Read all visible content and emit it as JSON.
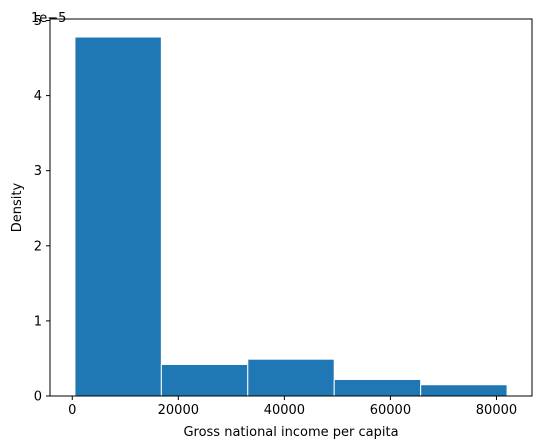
{
  "chart_data": {
    "type": "bar",
    "title": "",
    "xlabel": "Gross national income per capita",
    "ylabel": "Density",
    "y_offset_label": "1e−5",
    "bins": [
      {
        "x0": 500,
        "x1": 16800,
        "density": 4.78
      },
      {
        "x0": 16800,
        "x1": 33100,
        "density": 0.42
      },
      {
        "x0": 33100,
        "x1": 49400,
        "density": 0.49
      },
      {
        "x0": 49400,
        "x1": 65700,
        "density": 0.22
      },
      {
        "x0": 65700,
        "x1": 82000,
        "density": 0.15
      }
    ],
    "xlim": [
      -4200,
      86700
    ],
    "ylim": [
      0,
      5.02
    ],
    "xticks": [
      0,
      20000,
      40000,
      60000,
      80000
    ],
    "xtick_labels": [
      "0",
      "20000",
      "40000",
      "60000",
      "80000"
    ],
    "yticks": [
      0,
      1,
      2,
      3,
      4,
      5
    ],
    "ytick_labels": [
      "0",
      "1",
      "2",
      "3",
      "4",
      "5"
    ],
    "bar_color": "#1f77b4",
    "edge_color": "#ffffff",
    "grid": false,
    "legend": "none"
  }
}
